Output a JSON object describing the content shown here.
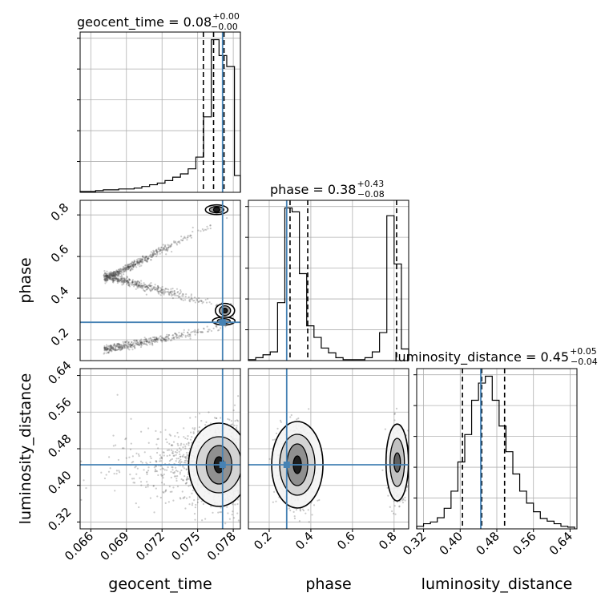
{
  "chart_data": {
    "type": "corner",
    "parameters": [
      "geocent_time",
      "phase",
      "luminosity_distance"
    ],
    "truth": {
      "geocent_time": 0.0771,
      "phase": 0.284,
      "luminosity_distance": 0.445
    },
    "titles": [
      {
        "param": "geocent_time",
        "text": "geocent_time = 0.08",
        "upper": "+0.00",
        "lower": "−0.00"
      },
      {
        "param": "phase",
        "text": "phase = 0.38",
        "upper": "+0.43",
        "lower": "−0.08"
      },
      {
        "param": "luminosity_distance",
        "text": "luminosity_distance = 0.45",
        "upper": "+0.05",
        "lower": "−0.04"
      }
    ],
    "axes": {
      "geocent_time": {
        "range": [
          0.0651,
          0.0786
        ],
        "ticks": [
          "0.066",
          "0.069",
          "0.072",
          "0.075",
          "0.078"
        ],
        "tick_values": [
          0.066,
          0.069,
          0.072,
          0.075,
          0.078
        ],
        "xlabel": "geocent_time"
      },
      "phase": {
        "range": [
          0.1,
          0.87
        ],
        "ticks": [
          "0.2",
          "0.4",
          "0.6",
          "0.8"
        ],
        "tick_values": [
          0.2,
          0.4,
          0.6,
          0.8
        ],
        "xlabel": "phase",
        "ylabel": "phase"
      },
      "luminosity_distance": {
        "range": [
          0.305,
          0.655
        ],
        "ticks": [
          "0.32",
          "0.40",
          "0.48",
          "0.56",
          "0.64"
        ],
        "tick_values": [
          0.32,
          0.4,
          0.48,
          0.56,
          0.64
        ],
        "xlabel": "luminosity_distance",
        "ylabel": "luminosity_distance"
      }
    },
    "histograms": {
      "geocent_time": {
        "bin_edges": [
          0.0651,
          0.06575,
          0.0664,
          0.06705,
          0.0677,
          0.06835,
          0.069,
          0.06965,
          0.0703,
          0.07095,
          0.0716,
          0.07225,
          0.0729,
          0.07355,
          0.0742,
          0.07485,
          0.0755,
          0.07615,
          0.0768,
          0.07745,
          0.0781,
          0.0786
        ],
        "counts": [
          1,
          1,
          2,
          3,
          3,
          4,
          4,
          5,
          7,
          9,
          11,
          14,
          18,
          22,
          28,
          42,
          90,
          182,
          163,
          150,
          20
        ],
        "quantiles": [
          0.07548,
          0.07634,
          0.07722
        ]
      },
      "phase": {
        "bin_edges": [
          0.1,
          0.135,
          0.17,
          0.205,
          0.24,
          0.275,
          0.31,
          0.345,
          0.38,
          0.415,
          0.45,
          0.485,
          0.52,
          0.555,
          0.59,
          0.625,
          0.66,
          0.695,
          0.73,
          0.765,
          0.8,
          0.835,
          0.87
        ],
        "counts": [
          1,
          3,
          6,
          9,
          60,
          158,
          154,
          90,
          36,
          24,
          13,
          8,
          3,
          1,
          1,
          1,
          3,
          9,
          29,
          150,
          100,
          12
        ],
        "quantiles": [
          0.3,
          0.385,
          0.812
        ]
      },
      "luminosity_distance": {
        "bin_edges": [
          0.305,
          0.32,
          0.335,
          0.35,
          0.365,
          0.38,
          0.395,
          0.41,
          0.425,
          0.44,
          0.455,
          0.47,
          0.485,
          0.5,
          0.515,
          0.53,
          0.545,
          0.56,
          0.575,
          0.59,
          0.605,
          0.62,
          0.635,
          0.65
        ],
        "counts": [
          3,
          6,
          8,
          13,
          24,
          44,
          78,
          110,
          150,
          170,
          178,
          150,
          120,
          90,
          64,
          44,
          30,
          20,
          12,
          9,
          6,
          3,
          2
        ],
        "quantiles": [
          0.405,
          0.447,
          0.497
        ]
      }
    },
    "scatter_panels": [
      {
        "x": "geocent_time",
        "y": "phase"
      },
      {
        "x": "geocent_time",
        "y": "luminosity_distance"
      },
      {
        "x": "phase",
        "y": "luminosity_distance"
      }
    ],
    "truth_color": "#4682b4",
    "quantile_color": "#000000",
    "hist_color": "#000000",
    "grid": true
  }
}
